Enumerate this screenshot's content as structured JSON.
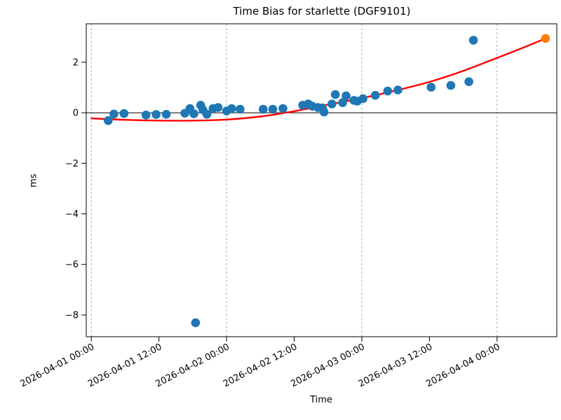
{
  "chart_data": {
    "type": "scatter",
    "title": "Time Bias for starlette (DGF9101)",
    "xlabel": "Time",
    "ylabel": "ms",
    "x_axis_kind": "datetime",
    "x_unit": "hours since 2026-04-01 00:00",
    "xlim_hours": [
      -0.9,
      82.6
    ],
    "ylim": [
      -8.86,
      3.52
    ],
    "x_ticks": [
      {
        "t": 0,
        "label": "2026-04-01 00:00"
      },
      {
        "t": 12,
        "label": "2026-04-01 12:00"
      },
      {
        "t": 24,
        "label": "2026-04-02 00:00"
      },
      {
        "t": 36,
        "label": "2026-04-02 12:00"
      },
      {
        "t": 48,
        "label": "2026-04-03 00:00"
      },
      {
        "t": 60,
        "label": "2026-04-03 12:00"
      },
      {
        "t": 72,
        "label": "2026-04-04 00:00"
      }
    ],
    "y_ticks": [
      2,
      0,
      -2,
      -4,
      -6,
      -8
    ],
    "day_gridlines_hours": [
      0,
      24,
      48,
      72
    ],
    "zero_line_y": 0,
    "grid": "vertical-day-lines-only",
    "legend": "none",
    "colors": {
      "observations": "#1f77b4",
      "prediction": "#ff7f0e",
      "fit_line": "#ff0000",
      "day_gridline": "#85b7da",
      "axis": "#000000"
    },
    "series": [
      {
        "name": "observations",
        "marker": "circle",
        "color": "#1f77b4",
        "points": [
          [
            3.0,
            -0.31
          ],
          [
            4.0,
            -0.05
          ],
          [
            5.8,
            -0.03
          ],
          [
            9.7,
            -0.09
          ],
          [
            11.5,
            -0.07
          ],
          [
            13.3,
            -0.06
          ],
          [
            16.6,
            -0.02
          ],
          [
            17.5,
            0.17
          ],
          [
            18.2,
            -0.04
          ],
          [
            18.5,
            -8.31
          ],
          [
            19.4,
            0.3
          ],
          [
            19.8,
            0.12
          ],
          [
            20.5,
            -0.06
          ],
          [
            21.6,
            0.17
          ],
          [
            22.5,
            0.21
          ],
          [
            24.0,
            0.07
          ],
          [
            24.9,
            0.17
          ],
          [
            26.4,
            0.14
          ],
          [
            30.5,
            0.14
          ],
          [
            32.2,
            0.14
          ],
          [
            34.0,
            0.17
          ],
          [
            37.5,
            0.3
          ],
          [
            38.5,
            0.35
          ],
          [
            39.2,
            0.26
          ],
          [
            40.2,
            0.21
          ],
          [
            41.0,
            0.19
          ],
          [
            41.3,
            0.03
          ],
          [
            42.7,
            0.35
          ],
          [
            43.3,
            0.72
          ],
          [
            44.6,
            0.4
          ],
          [
            45.2,
            0.67
          ],
          [
            46.6,
            0.49
          ],
          [
            47.2,
            0.46
          ],
          [
            48.2,
            0.56
          ],
          [
            50.4,
            0.69
          ],
          [
            52.6,
            0.86
          ],
          [
            54.4,
            0.9
          ],
          [
            60.3,
            1.01
          ],
          [
            63.8,
            1.08
          ],
          [
            67.0,
            1.23
          ],
          [
            67.8,
            2.87
          ]
        ]
      },
      {
        "name": "prediction",
        "marker": "circle",
        "color": "#ff7f0e",
        "points": [
          [
            80.6,
            2.94
          ]
        ]
      }
    ],
    "fit_line_points": [
      [
        0,
        -0.22
      ],
      [
        6,
        -0.28
      ],
      [
        12,
        -0.31
      ],
      [
        18,
        -0.31
      ],
      [
        24,
        -0.27
      ],
      [
        30,
        -0.15
      ],
      [
        34.4,
        0.0
      ],
      [
        36,
        0.06
      ],
      [
        42,
        0.32
      ],
      [
        48,
        0.58
      ],
      [
        54,
        0.88
      ],
      [
        60,
        1.22
      ],
      [
        66,
        1.66
      ],
      [
        72,
        2.17
      ],
      [
        76,
        2.52
      ],
      [
        80.6,
        2.94
      ]
    ]
  }
}
